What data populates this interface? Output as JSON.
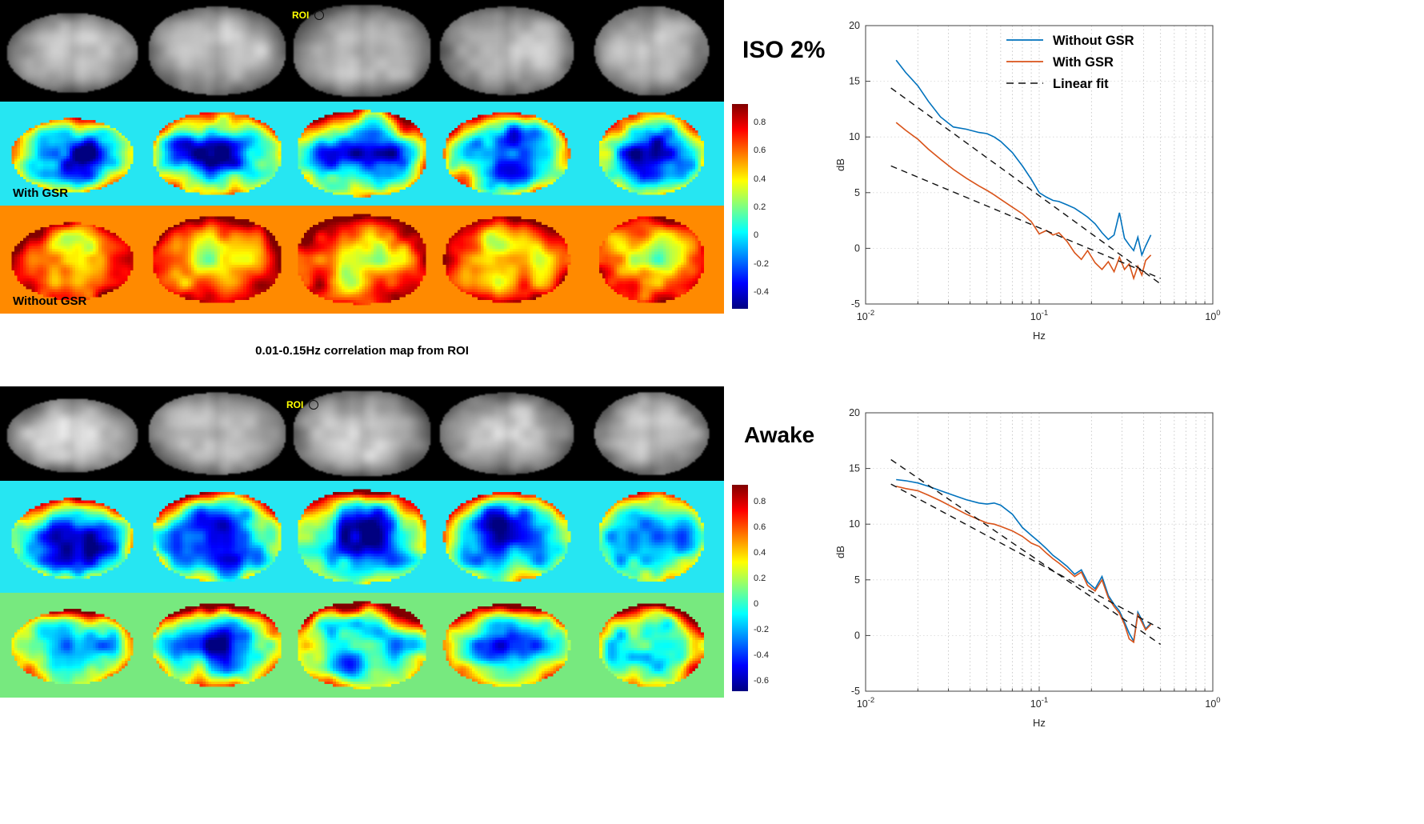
{
  "figure": {
    "caption": "0.01-0.15Hz correlation map from ROI",
    "roi_label": "ROI"
  },
  "blocks": [
    {
      "id": "iso",
      "rows": [
        {
          "kind": "anatomical",
          "label": "",
          "bg": "#000000",
          "style": "gray"
        },
        {
          "kind": "correlation",
          "label": "With GSR",
          "bg": "#26e6f2",
          "style": "cool"
        },
        {
          "kind": "correlation",
          "label": "Without GSR",
          "bg": "#ff8a00",
          "style": "warm"
        }
      ],
      "colorbar": {
        "vmax": 0.93,
        "vmin": -0.52,
        "ticks": [
          "0.8",
          "0.6",
          "0.4",
          "0.2",
          "0",
          "-0.2",
          "-0.4"
        ]
      }
    },
    {
      "id": "awake",
      "rows": [
        {
          "kind": "anatomical",
          "label": "",
          "bg": "#000000",
          "style": "gray"
        },
        {
          "kind": "correlation",
          "label": "",
          "bg": "#26e6f2",
          "style": "mixed"
        },
        {
          "kind": "correlation",
          "label": "",
          "bg": "#77e97f",
          "style": "mixed2"
        }
      ],
      "colorbar": {
        "vmax": 0.93,
        "vmin": -0.68,
        "ticks": [
          "0.8",
          "0.6",
          "0.4",
          "0.2",
          "0",
          "-0.2",
          "-0.4",
          "-0.6"
        ]
      }
    }
  ],
  "chart_data": [
    {
      "type": "line",
      "title": "ISO 2%",
      "xlabel": "Hz",
      "ylabel": "dB",
      "xscale": "log",
      "xlim": [
        0.01,
        1
      ],
      "ylim": [
        -5,
        20
      ],
      "xticks": [
        0.01,
        0.1,
        1
      ],
      "xtick_labels": [
        "10^{-2}",
        "10^{-1}",
        "10^{0}"
      ],
      "yticks": [
        -5,
        0,
        5,
        10,
        15,
        20
      ],
      "grid": true,
      "legend": {
        "visible": true,
        "position": "top-right",
        "items": [
          {
            "label": "Without GSR",
            "series": 0
          },
          {
            "label": "With      GSR",
            "series": 1
          },
          {
            "label": "Linear fit",
            "series": 2
          }
        ]
      },
      "series": [
        {
          "name": "Without GSR",
          "color": "#0072BD",
          "style": "solid",
          "x": [
            0.015,
            0.017,
            0.02,
            0.023,
            0.027,
            0.032,
            0.038,
            0.045,
            0.05,
            0.055,
            0.06,
            0.07,
            0.08,
            0.09,
            0.1,
            0.11,
            0.12,
            0.13,
            0.145,
            0.16,
            0.175,
            0.19,
            0.21,
            0.23,
            0.25,
            0.27,
            0.29,
            0.31,
            0.33,
            0.35,
            0.37,
            0.39,
            0.41,
            0.44
          ],
          "y": [
            16.9,
            15.8,
            14.6,
            13.2,
            11.8,
            10.9,
            10.7,
            10.4,
            10.3,
            10.0,
            9.6,
            8.6,
            7.4,
            6.2,
            5.0,
            4.6,
            4.3,
            4.2,
            3.9,
            3.6,
            3.2,
            2.8,
            2.2,
            1.4,
            0.8,
            1.2,
            3.2,
            0.9,
            0.3,
            -0.2,
            1.0,
            -0.6,
            0.2,
            1.2
          ]
        },
        {
          "name": "With GSR",
          "color": "#D95319",
          "style": "solid",
          "x": [
            0.015,
            0.017,
            0.02,
            0.023,
            0.027,
            0.032,
            0.038,
            0.045,
            0.05,
            0.055,
            0.06,
            0.07,
            0.08,
            0.09,
            0.1,
            0.11,
            0.12,
            0.13,
            0.145,
            0.16,
            0.175,
            0.19,
            0.21,
            0.23,
            0.25,
            0.27,
            0.29,
            0.31,
            0.33,
            0.35,
            0.37,
            0.39,
            0.41,
            0.44
          ],
          "y": [
            11.3,
            10.6,
            9.8,
            8.9,
            8.0,
            7.1,
            6.3,
            5.6,
            5.2,
            4.8,
            4.4,
            3.7,
            3.1,
            2.4,
            1.3,
            1.6,
            1.2,
            1.4,
            0.6,
            -0.4,
            -1.0,
            -0.2,
            -1.3,
            -1.9,
            -1.2,
            -2.1,
            -0.8,
            -1.9,
            -1.4,
            -2.7,
            -1.6,
            -2.4,
            -1.1,
            -0.6
          ]
        },
        {
          "name": "Linear fit (without GSR)",
          "color": "#111111",
          "style": "dashed",
          "x": [
            0.014,
            0.5
          ],
          "y": [
            14.4,
            -3.2
          ]
        },
        {
          "name": "Linear fit (with GSR)",
          "color": "#111111",
          "style": "dashed",
          "x": [
            0.014,
            0.5
          ],
          "y": [
            7.4,
            -2.7
          ]
        }
      ]
    },
    {
      "type": "line",
      "title": "Awake",
      "xlabel": "Hz",
      "ylabel": "dB",
      "xscale": "log",
      "xlim": [
        0.01,
        1
      ],
      "ylim": [
        -5,
        20
      ],
      "xticks": [
        0.01,
        0.1,
        1
      ],
      "xtick_labels": [
        "10^{-2}",
        "10^{-1}",
        "10^{0}"
      ],
      "yticks": [
        -5,
        0,
        5,
        10,
        15,
        20
      ],
      "grid": true,
      "legend": {
        "visible": false,
        "position": "",
        "items": []
      },
      "series": [
        {
          "name": "Without GSR",
          "color": "#0072BD",
          "style": "solid",
          "x": [
            0.015,
            0.017,
            0.02,
            0.023,
            0.027,
            0.032,
            0.038,
            0.045,
            0.05,
            0.055,
            0.06,
            0.07,
            0.08,
            0.09,
            0.1,
            0.11,
            0.12,
            0.13,
            0.145,
            0.16,
            0.175,
            0.19,
            0.21,
            0.23,
            0.25,
            0.27,
            0.29,
            0.31,
            0.33,
            0.35,
            0.37,
            0.39,
            0.41,
            0.44
          ],
          "y": [
            14.0,
            13.9,
            13.7,
            13.4,
            13.0,
            12.6,
            12.2,
            11.9,
            11.8,
            11.9,
            11.7,
            10.9,
            9.7,
            9.0,
            8.4,
            7.8,
            7.2,
            6.8,
            6.2,
            5.5,
            5.9,
            4.8,
            4.2,
            5.3,
            3.6,
            2.8,
            2.2,
            1.2,
            0.2,
            -0.5,
            2.1,
            1.4,
            0.6,
            1.1
          ]
        },
        {
          "name": "With GSR",
          "color": "#D95319",
          "style": "solid",
          "x": [
            0.015,
            0.017,
            0.02,
            0.023,
            0.027,
            0.032,
            0.038,
            0.045,
            0.05,
            0.055,
            0.06,
            0.07,
            0.08,
            0.09,
            0.1,
            0.11,
            0.12,
            0.13,
            0.145,
            0.16,
            0.175,
            0.19,
            0.21,
            0.23,
            0.25,
            0.27,
            0.29,
            0.31,
            0.33,
            0.35,
            0.37,
            0.39,
            0.41,
            0.44
          ],
          "y": [
            13.4,
            13.2,
            13.0,
            12.6,
            12.1,
            11.5,
            10.9,
            10.4,
            10.1,
            10.0,
            9.8,
            9.4,
            8.9,
            8.3,
            8.0,
            7.4,
            6.9,
            6.5,
            5.9,
            5.3,
            5.7,
            4.5,
            4.0,
            5.0,
            3.4,
            2.6,
            2.0,
            1.0,
            -0.3,
            -0.6,
            1.9,
            1.2,
            0.5,
            1.0
          ]
        },
        {
          "name": "Linear fit (without GSR)",
          "color": "#111111",
          "style": "dashed",
          "x": [
            0.014,
            0.5
          ],
          "y": [
            15.8,
            -0.8
          ]
        },
        {
          "name": "Linear fit (with GSR)",
          "color": "#111111",
          "style": "dashed",
          "x": [
            0.014,
            0.5
          ],
          "y": [
            13.6,
            0.6
          ]
        }
      ]
    }
  ]
}
